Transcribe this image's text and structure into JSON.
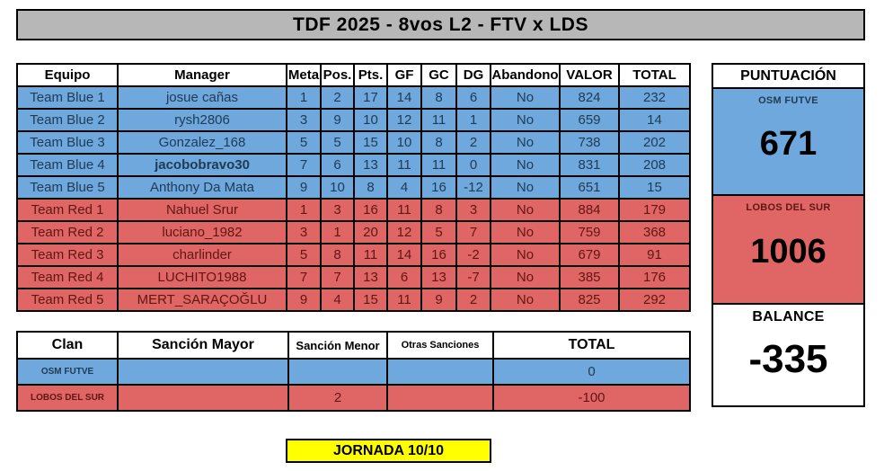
{
  "title": "TDF 2025 - 8vos L2 - FTV x LDS",
  "standings": {
    "headers": [
      "Equipo",
      "Manager",
      "Meta",
      "Pos.",
      "Pts.",
      "GF",
      "GC",
      "DG",
      "Abandono",
      "VALOR",
      "TOTAL"
    ],
    "rows": [
      {
        "team": "blue",
        "bold_manager": false,
        "cells": [
          "Team Blue 1",
          "josue cañas",
          "1",
          "2",
          "17",
          "14",
          "8",
          "6",
          "No",
          "824",
          "232"
        ]
      },
      {
        "team": "blue",
        "bold_manager": false,
        "cells": [
          "Team Blue 2",
          "rysh2806",
          "3",
          "9",
          "10",
          "12",
          "11",
          "1",
          "No",
          "659",
          "14"
        ]
      },
      {
        "team": "blue",
        "bold_manager": false,
        "cells": [
          "Team Blue 3",
          "Gonzalez_168",
          "5",
          "5",
          "15",
          "10",
          "8",
          "2",
          "No",
          "738",
          "202"
        ]
      },
      {
        "team": "blue",
        "bold_manager": true,
        "cells": [
          "Team Blue 4",
          "jacobobravo30",
          "7",
          "6",
          "13",
          "11",
          "11",
          "0",
          "No",
          "831",
          "208"
        ]
      },
      {
        "team": "blue",
        "bold_manager": false,
        "cells": [
          "Team Blue 5",
          "Anthony Da Mata",
          "9",
          "10",
          "8",
          "4",
          "16",
          "-12",
          "No",
          "651",
          "15"
        ]
      },
      {
        "team": "red",
        "bold_manager": false,
        "cells": [
          "Team Red 1",
          "Nahuel Srur",
          "1",
          "3",
          "16",
          "11",
          "8",
          "3",
          "No",
          "884",
          "179"
        ]
      },
      {
        "team": "red",
        "bold_manager": false,
        "cells": [
          "Team Red 2",
          "luciano_1982",
          "3",
          "1",
          "20",
          "12",
          "5",
          "7",
          "No",
          "759",
          "368"
        ]
      },
      {
        "team": "red",
        "bold_manager": false,
        "cells": [
          "Team Red 3",
          "charlinder",
          "5",
          "8",
          "11",
          "14",
          "16",
          "-2",
          "No",
          "679",
          "91"
        ]
      },
      {
        "team": "red",
        "bold_manager": false,
        "cells": [
          "Team Red 4",
          "LUCHITO1988",
          "7",
          "7",
          "13",
          "6",
          "13",
          "-7",
          "No",
          "385",
          "176"
        ]
      },
      {
        "team": "red",
        "bold_manager": false,
        "cells": [
          "Team Red 5",
          "MERT_SARAÇOĞLU",
          "9",
          "4",
          "15",
          "11",
          "9",
          "2",
          "No",
          "825",
          "292"
        ]
      }
    ]
  },
  "sanctions": {
    "headers": [
      "Clan",
      "Sanción Mayor",
      "Sanción Menor",
      "Otras Sanciones",
      "TOTAL"
    ],
    "rows": [
      {
        "team": "blue",
        "bold_manager": false,
        "cells": [
          "OSM FUTVE",
          "",
          "",
          "",
          "0"
        ]
      },
      {
        "team": "red",
        "bold_manager": false,
        "cells": [
          "LOBOS DEL SUR",
          "",
          "2",
          "",
          "-100"
        ]
      }
    ]
  },
  "score_panel": {
    "title": "PUNTUACIÓN",
    "sections": [
      {
        "label": "OSM FUTVE",
        "value": "671"
      },
      {
        "label": "LOBOS DEL SUR",
        "value": "1006"
      },
      {
        "label": "BALANCE",
        "value": "-335"
      }
    ]
  },
  "badge": {
    "label": "JORNADA 10/10"
  },
  "colors": {
    "blue": "#6fa8dc",
    "red": "#e06666",
    "gray": "#b7b7b7",
    "yellow": "#ffff00",
    "blue_text": "#203b55",
    "red_text": "#5e1712"
  }
}
